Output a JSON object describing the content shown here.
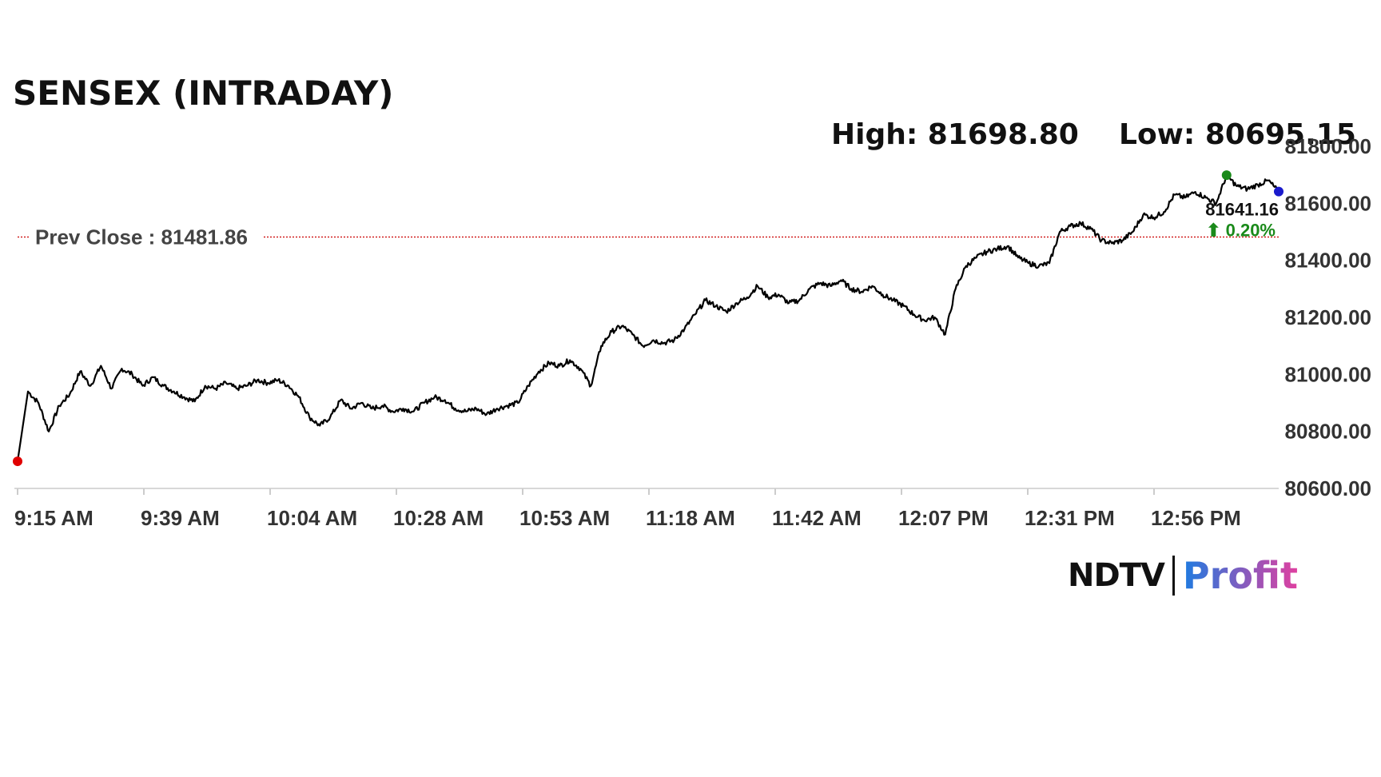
{
  "title": "SENSEX (INTRADAY)",
  "high_label": "High: 81698.80",
  "low_label": "Low: 80695.15",
  "prev_close_label": "Prev Close : 81481.86",
  "last_value_label": "81641.16",
  "change_label": "⬆ 0.20%",
  "logo": {
    "ndtv": "NDTV",
    "profit": "Profit"
  },
  "colors": {
    "line": "#000000",
    "prev_close": "#cc0000",
    "low_marker": "#e00000",
    "high_marker": "#1a8a1a",
    "last_marker": "#1a1acc",
    "change_up": "#1a8a1a",
    "profit_gradient_start": "#1e7be0",
    "profit_gradient_end": "#e040a0"
  },
  "chart_data": {
    "type": "line",
    "title": "SENSEX (INTRADAY)",
    "xlabel": "",
    "ylabel": "",
    "ylim": [
      80600,
      81800
    ],
    "yticks": [
      "81800.00",
      "81600.00",
      "81400.00",
      "81200.00",
      "81000.00",
      "80800.00",
      "80600.00"
    ],
    "xticks": [
      "9:15 AM",
      "9:39 AM",
      "10:04 AM",
      "10:28 AM",
      "10:53 AM",
      "11:18 AM",
      "11:42 AM",
      "12:07 PM",
      "12:31 PM",
      "12:56 PM"
    ],
    "prev_close": 81481.86,
    "high": 81698.8,
    "low": 80695.15,
    "last": 81641.16,
    "change_pct": 0.2,
    "grid": false,
    "series": [
      {
        "values": [
          80695,
          80940,
          80900,
          80800,
          80890,
          80930,
          81010,
          80960,
          81030,
          80950,
          81020,
          81000,
          80960,
          80990,
          80960,
          80940,
          80920,
          80905,
          80960,
          80950,
          80970,
          80950,
          80960,
          80980,
          80970,
          80980,
          80960,
          80920,
          80850,
          80820,
          80850,
          80910,
          80880,
          80900,
          80880,
          80890,
          80870,
          80880,
          80870,
          80900,
          80920,
          80910,
          80880,
          80870,
          80880,
          80860,
          80880,
          80890,
          80900,
          80960,
          81010,
          81040,
          81030,
          81050,
          81020,
          80960,
          81100,
          81150,
          81170,
          81140,
          81100,
          81120,
          81110,
          81120,
          81160,
          81210,
          81260,
          81240,
          81220,
          81250,
          81270,
          81310,
          81270,
          81280,
          81250,
          81260,
          81300,
          81320,
          81310,
          81330,
          81300,
          81290,
          81310,
          81280,
          81260,
          81240,
          81210,
          81190,
          81200,
          81140,
          81300,
          81380,
          81410,
          81430,
          81440,
          81450,
          81410,
          81390,
          81380,
          81390,
          81500,
          81520,
          81530,
          81510,
          81470,
          81460,
          81470,
          81500,
          81560,
          81550,
          81570,
          81630,
          81620,
          81640,
          81620,
          81600,
          81698,
          81660,
          81650,
          81665,
          81680,
          81641
        ]
      }
    ]
  }
}
